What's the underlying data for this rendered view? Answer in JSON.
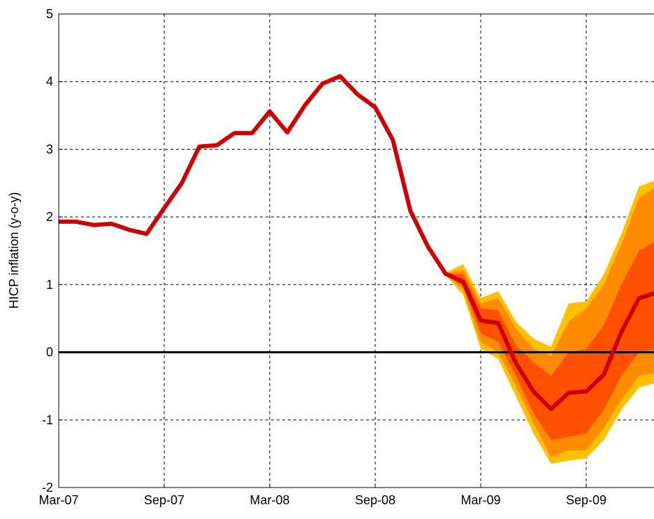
{
  "chart_data": {
    "type": "fan",
    "y_label": "HICP inflation  (y-o-y)",
    "categories": [
      "Mar-07",
      null,
      null,
      null,
      null,
      null,
      "Sep-07",
      null,
      null,
      null,
      null,
      null,
      "Mar-08",
      null,
      null,
      null,
      null,
      null,
      "Sep-08",
      null,
      null,
      null,
      null,
      null,
      "Mar-09",
      null,
      null,
      null,
      null,
      null,
      "Sep-09",
      null,
      null,
      null,
      null
    ],
    "ylim": [
      -2,
      5
    ],
    "yticks": [
      -2,
      -1,
      0,
      1,
      2,
      3,
      4,
      5
    ],
    "grid": true,
    "zero_line": true,
    "series": [
      {
        "color": "#cc0000",
        "values": [
          1.93,
          1.93,
          1.88,
          1.9,
          1.81,
          1.75,
          2.13,
          2.5,
          3.04,
          3.06,
          3.24,
          3.24,
          3.56,
          3.25,
          3.65,
          3.97,
          4.08,
          3.81,
          3.62,
          3.14,
          2.09,
          1.56,
          1.16,
          1.04,
          0.47,
          0.43,
          -0.16,
          -0.58,
          -0.84,
          -0.6,
          -0.58,
          -0.33,
          0.3,
          0.8,
          0.88
        ]
      }
    ],
    "bands": [
      {
        "color": "#ffc000",
        "upper": [
          null,
          null,
          null,
          null,
          null,
          null,
          null,
          null,
          null,
          null,
          null,
          null,
          null,
          null,
          null,
          null,
          null,
          null,
          null,
          null,
          null,
          null,
          1.18,
          1.3,
          0.8,
          0.9,
          0.45,
          0.2,
          0.08,
          0.72,
          0.75,
          1.15,
          1.75,
          2.45,
          2.55
        ],
        "lower": [
          null,
          null,
          null,
          null,
          null,
          null,
          null,
          null,
          null,
          null,
          null,
          null,
          null,
          null,
          null,
          null,
          null,
          null,
          null,
          null,
          null,
          null,
          1.14,
          0.85,
          0.05,
          -0.1,
          -0.65,
          -1.2,
          -1.65,
          -1.6,
          -1.57,
          -1.3,
          -0.85,
          -0.52,
          -0.45
        ]
      },
      {
        "color": "#ff8c00",
        "upper": [
          null,
          null,
          null,
          null,
          null,
          null,
          null,
          null,
          null,
          null,
          null,
          null,
          null,
          null,
          null,
          null,
          null,
          null,
          null,
          null,
          null,
          null,
          1.17,
          1.22,
          0.72,
          0.8,
          0.35,
          0.05,
          -0.05,
          0.45,
          0.65,
          1.0,
          1.6,
          2.28,
          2.45
        ],
        "lower": [
          null,
          null,
          null,
          null,
          null,
          null,
          null,
          null,
          null,
          null,
          null,
          null,
          null,
          null,
          null,
          null,
          null,
          null,
          null,
          null,
          null,
          null,
          1.15,
          0.92,
          0.15,
          0.0,
          -0.5,
          -1.05,
          -1.55,
          -1.45,
          -1.45,
          -1.12,
          -0.7,
          -0.35,
          -0.3
        ]
      },
      {
        "color": "#ff5000",
        "upper": [
          null,
          null,
          null,
          null,
          null,
          null,
          null,
          null,
          null,
          null,
          null,
          null,
          null,
          null,
          null,
          null,
          null,
          null,
          null,
          null,
          null,
          null,
          1.17,
          1.15,
          0.65,
          0.62,
          0.1,
          -0.15,
          -0.35,
          0.0,
          0.05,
          0.4,
          1.0,
          1.5,
          1.65
        ],
        "lower": [
          null,
          null,
          null,
          null,
          null,
          null,
          null,
          null,
          null,
          null,
          null,
          null,
          null,
          null,
          null,
          null,
          null,
          null,
          null,
          null,
          null,
          null,
          1.15,
          0.98,
          0.28,
          0.15,
          -0.35,
          -0.9,
          -1.3,
          -1.25,
          -1.2,
          -0.85,
          -0.35,
          0.0,
          0.05
        ]
      }
    ]
  }
}
